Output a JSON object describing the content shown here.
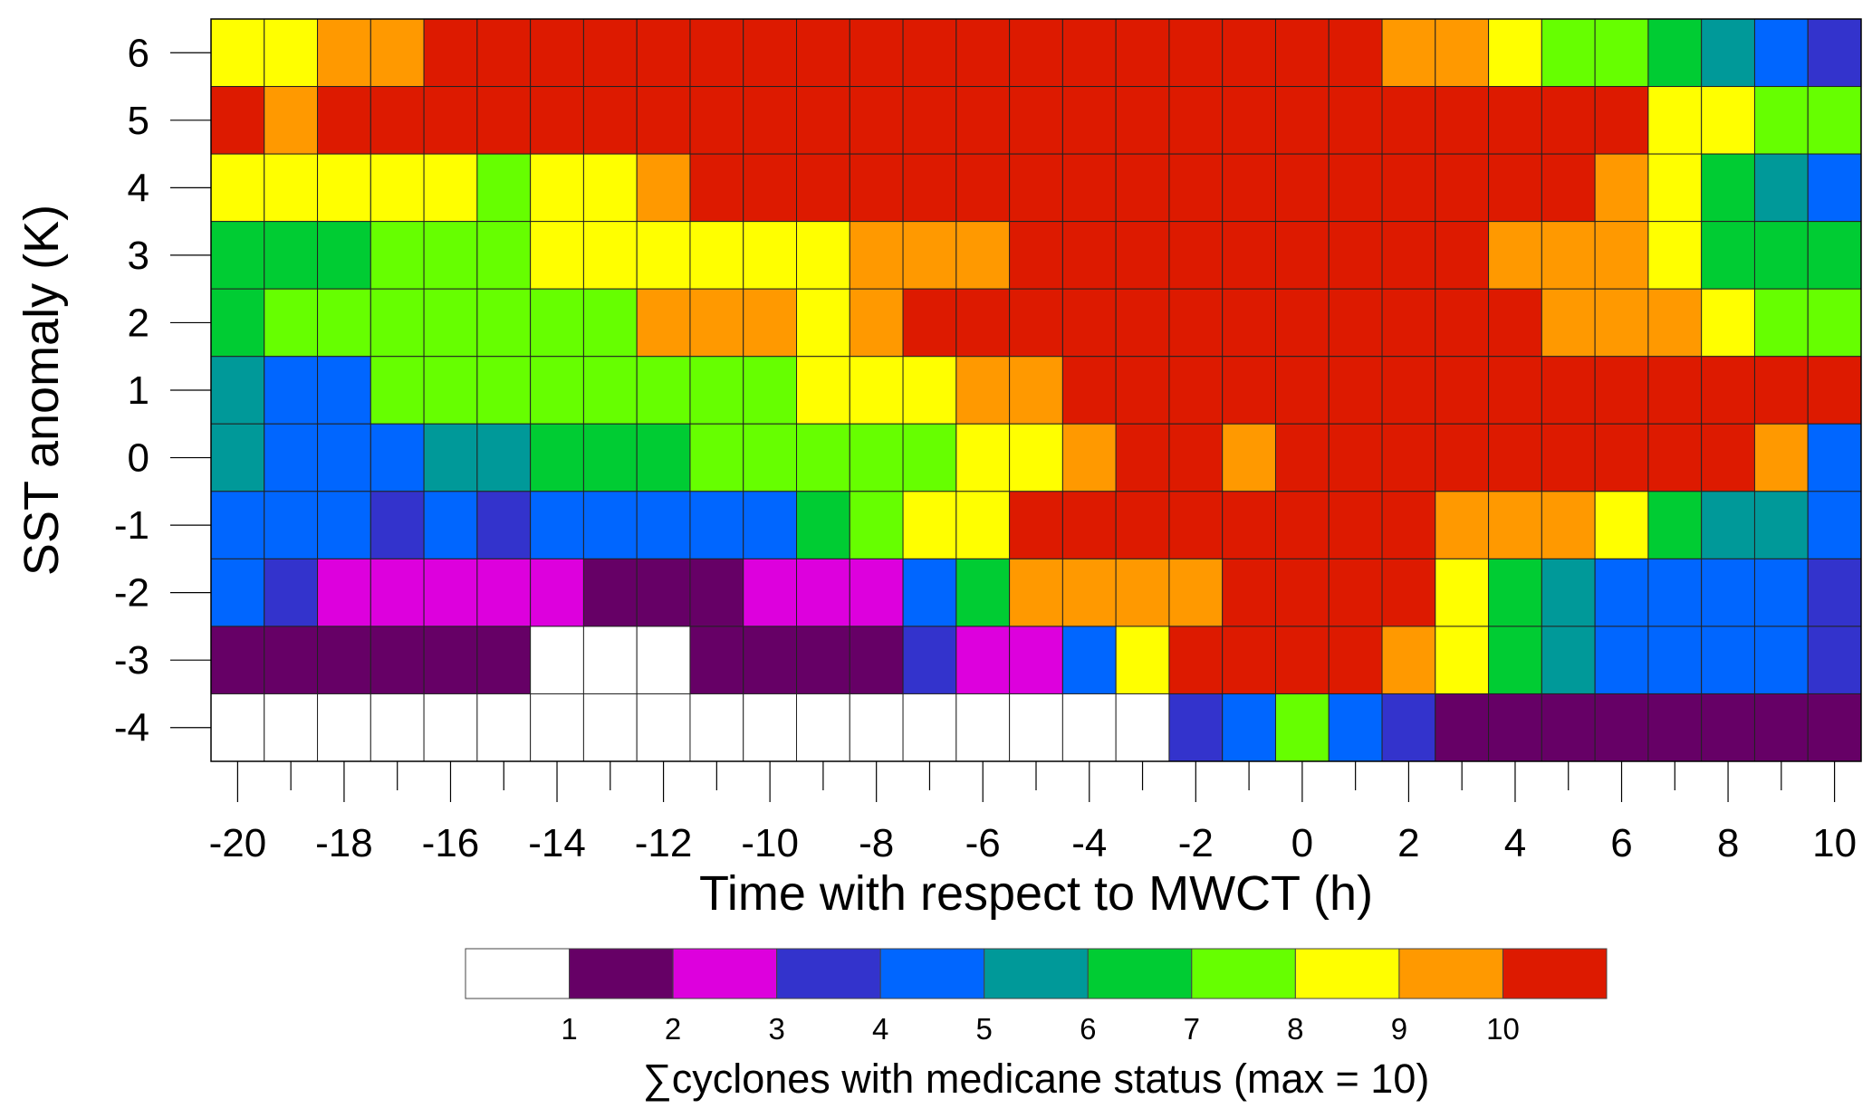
{
  "chart_data": {
    "type": "heatmap",
    "xlabel": "Time with respect to MWCT (h)",
    "ylabel": "SST anomaly (K)",
    "x": [
      -20,
      -19,
      -18,
      -17,
      -16,
      -15,
      -14,
      -13,
      -12,
      -11,
      -10,
      -9,
      -8,
      -7,
      -6,
      -5,
      -4,
      -3,
      -2,
      -1,
      0,
      1,
      2,
      3,
      4,
      5,
      6,
      7,
      8,
      9,
      10
    ],
    "y": [
      6,
      5,
      4,
      3,
      2,
      1,
      0,
      -1,
      -2,
      -3,
      -4
    ],
    "x_tick_labels": [
      "-20",
      "-18",
      "-16",
      "-14",
      "-12",
      "-10",
      "-8",
      "-6",
      "-4",
      "-2",
      "0",
      "2",
      "4",
      "6",
      "8",
      "10"
    ],
    "y_tick_labels": [
      "6",
      "5",
      "4",
      "3",
      "2",
      "1",
      "0",
      "-1",
      "-2",
      "-3",
      "-4"
    ],
    "values": [
      [
        8,
        8,
        9,
        9,
        10,
        10,
        10,
        10,
        10,
        10,
        10,
        10,
        10,
        10,
        10,
        10,
        10,
        10,
        10,
        10,
        10,
        10,
        9,
        9,
        8,
        7,
        7,
        6,
        5,
        4,
        3
      ],
      [
        10,
        9,
        10,
        10,
        10,
        10,
        10,
        10,
        10,
        10,
        10,
        10,
        10,
        10,
        10,
        10,
        10,
        10,
        10,
        10,
        10,
        10,
        10,
        10,
        10,
        10,
        10,
        8,
        8,
        7,
        7
      ],
      [
        8,
        8,
        8,
        8,
        8,
        7,
        8,
        8,
        9,
        10,
        10,
        10,
        10,
        10,
        10,
        10,
        10,
        10,
        10,
        10,
        10,
        10,
        10,
        10,
        10,
        10,
        9,
        8,
        6,
        5,
        4
      ],
      [
        6,
        6,
        6,
        7,
        7,
        7,
        8,
        8,
        8,
        8,
        8,
        8,
        9,
        9,
        9,
        10,
        10,
        10,
        10,
        10,
        10,
        10,
        10,
        10,
        9,
        9,
        9,
        8,
        6,
        6,
        6
      ],
      [
        6,
        7,
        7,
        7,
        7,
        7,
        7,
        7,
        9,
        9,
        9,
        8,
        9,
        10,
        10,
        10,
        10,
        10,
        10,
        10,
        10,
        10,
        10,
        10,
        10,
        9,
        9,
        9,
        8,
        7,
        7
      ],
      [
        5,
        4,
        4,
        7,
        7,
        7,
        7,
        7,
        7,
        7,
        7,
        8,
        8,
        8,
        9,
        9,
        10,
        10,
        10,
        10,
        10,
        10,
        10,
        10,
        10,
        10,
        10,
        10,
        10,
        10,
        10
      ],
      [
        5,
        4,
        4,
        4,
        5,
        5,
        6,
        6,
        6,
        7,
        7,
        7,
        7,
        7,
        8,
        8,
        9,
        10,
        10,
        9,
        10,
        10,
        10,
        10,
        10,
        10,
        10,
        10,
        10,
        9,
        4
      ],
      [
        4,
        4,
        4,
        3,
        4,
        3,
        4,
        4,
        4,
        4,
        4,
        6,
        7,
        8,
        8,
        10,
        10,
        10,
        10,
        10,
        10,
        10,
        10,
        9,
        9,
        9,
        8,
        6,
        5,
        5,
        4
      ],
      [
        4,
        3,
        2,
        2,
        2,
        2,
        2,
        1,
        1,
        1,
        2,
        2,
        2,
        4,
        6,
        9,
        9,
        9,
        9,
        10,
        10,
        10,
        10,
        8,
        6,
        5,
        4,
        4,
        4,
        4,
        3
      ],
      [
        1,
        1,
        1,
        1,
        1,
        1,
        0,
        0,
        0,
        1,
        1,
        1,
        1,
        3,
        2,
        2,
        4,
        8,
        10,
        10,
        10,
        10,
        9,
        8,
        6,
        5,
        4,
        4,
        4,
        4,
        3
      ],
      [
        0,
        0,
        0,
        0,
        0,
        0,
        0,
        0,
        0,
        0,
        0,
        0,
        0,
        0,
        0,
        0,
        0,
        0,
        3,
        4,
        7,
        4,
        3,
        1,
        1,
        1,
        1,
        1,
        1,
        1,
        1
      ]
    ],
    "colorbar": {
      "colors": [
        "#ffffff",
        "#660066",
        "#dd00dd",
        "#3333cc",
        "#0066ff",
        "#009999",
        "#00cc33",
        "#66ff00",
        "#ffff00",
        "#ff9900",
        "#dd1a00"
      ],
      "tick_labels": [
        "1",
        "2",
        "3",
        "4",
        "5",
        "6",
        "7",
        "8",
        "9",
        "10"
      ],
      "label": "∑cyclones with medicane status (max = 10)"
    },
    "grid": true
  }
}
